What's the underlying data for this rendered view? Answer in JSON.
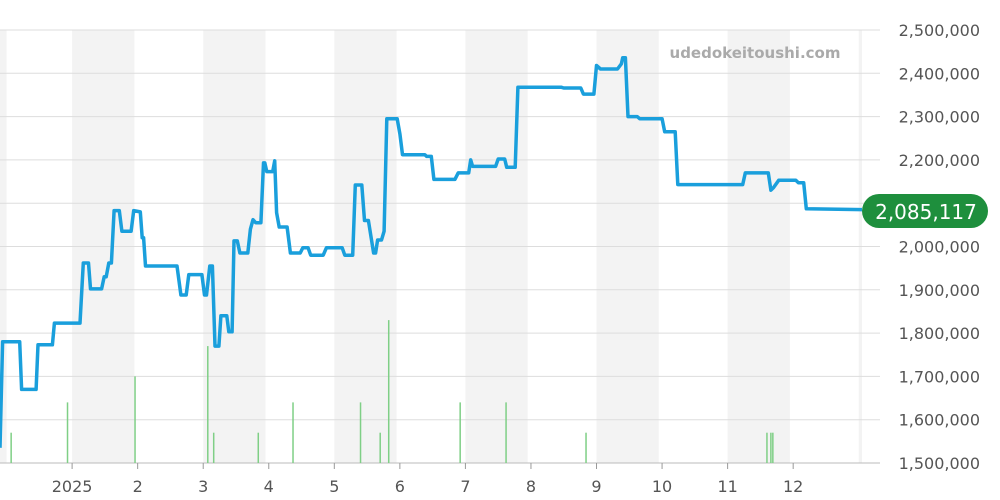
{
  "watermark": "udedokeitoushi.com",
  "current_value_label": "2,085,117",
  "colors": {
    "line": "#1a9fdc",
    "volume": "#7fcf86",
    "badge": "#1e8f3d",
    "band": "#f3f3f3",
    "grid": "#dddddd"
  },
  "chart_data": {
    "type": "line",
    "title": "",
    "xlabel": "",
    "ylabel": "",
    "ylim": [
      1500000,
      2500000
    ],
    "y_ticks": [
      {
        "value": 2500000,
        "label": "2,500,000"
      },
      {
        "value": 2400000,
        "label": "2,400,000"
      },
      {
        "value": 2300000,
        "label": "2,300,000"
      },
      {
        "value": 2200000,
        "label": "2,200,000"
      },
      {
        "value": 2100000,
        "label": ""
      },
      {
        "value": 2000000,
        "label": "2,000,000"
      },
      {
        "value": 1900000,
        "label": "1,900,000"
      },
      {
        "value": 1800000,
        "label": "1,800,000"
      },
      {
        "value": 1700000,
        "label": "1,700,000"
      },
      {
        "value": 1600000,
        "label": "1,600,000"
      },
      {
        "value": 1500000,
        "label": "1,500,000"
      }
    ],
    "x_range": [
      -1.1,
      12.05
    ],
    "x_ticks": [
      {
        "value": 0,
        "label": "2025"
      },
      {
        "value": 1,
        "label": "2"
      },
      {
        "value": 2,
        "label": "3"
      },
      {
        "value": 3,
        "label": "4"
      },
      {
        "value": 4,
        "label": "5"
      },
      {
        "value": 5,
        "label": "6"
      },
      {
        "value": 6,
        "label": "7"
      },
      {
        "value": 7,
        "label": "8"
      },
      {
        "value": 8,
        "label": "9"
      },
      {
        "value": 9,
        "label": "10"
      },
      {
        "value": 10,
        "label": "11"
      },
      {
        "value": 11,
        "label": "12"
      }
    ],
    "shaded_bands": [
      [
        -1.1,
        -1.0
      ],
      [
        0,
        0.95
      ],
      [
        2,
        2.95
      ],
      [
        4,
        4.95
      ],
      [
        6,
        6.95
      ],
      [
        8,
        8.95
      ],
      [
        10,
        10.95
      ],
      [
        12,
        12.05
      ]
    ],
    "series": [
      {
        "points": [
          [
            -1.1,
            1535000
          ],
          [
            -1.06,
            1780000
          ],
          [
            -0.8,
            1780000
          ],
          [
            -0.77,
            1670000
          ],
          [
            -0.55,
            1670000
          ],
          [
            -0.52,
            1773000
          ],
          [
            -0.3,
            1773000
          ],
          [
            -0.27,
            1823000
          ],
          [
            0.12,
            1823000
          ],
          [
            0.17,
            1962000
          ],
          [
            0.25,
            1962000
          ],
          [
            0.28,
            1902000
          ],
          [
            0.45,
            1902000
          ],
          [
            0.49,
            1930000
          ],
          [
            0.52,
            1930000
          ],
          [
            0.56,
            1962000
          ],
          [
            0.6,
            1962000
          ],
          [
            0.64,
            2083000
          ],
          [
            0.72,
            2083000
          ],
          [
            0.76,
            2035000
          ],
          [
            0.9,
            2035000
          ],
          [
            0.94,
            2083000
          ],
          [
            1.04,
            2080000
          ],
          [
            1.07,
            2020000
          ],
          [
            1.09,
            2020000
          ],
          [
            1.12,
            1955000
          ],
          [
            1.6,
            1955000
          ],
          [
            1.66,
            1888000
          ],
          [
            1.74,
            1888000
          ],
          [
            1.78,
            1935000
          ],
          [
            1.98,
            1935000
          ],
          [
            2.02,
            1888000
          ],
          [
            2.05,
            1888000
          ],
          [
            2.1,
            1955000
          ],
          [
            2.14,
            1955000
          ],
          [
            2.18,
            1770000
          ],
          [
            2.24,
            1770000
          ],
          [
            2.27,
            1840000
          ],
          [
            2.36,
            1840000
          ],
          [
            2.39,
            1803000
          ],
          [
            2.44,
            1803000
          ],
          [
            2.47,
            2013000
          ],
          [
            2.52,
            2013000
          ],
          [
            2.56,
            1985000
          ],
          [
            2.68,
            1985000
          ],
          [
            2.72,
            2040000
          ],
          [
            2.76,
            2062000
          ],
          [
            2.8,
            2055000
          ],
          [
            2.88,
            2055000
          ],
          [
            2.92,
            2193000
          ],
          [
            2.94,
            2193000
          ],
          [
            2.97,
            2173000
          ],
          [
            3.06,
            2173000
          ],
          [
            3.09,
            2198000
          ],
          [
            3.12,
            2078000
          ],
          [
            3.16,
            2045000
          ],
          [
            3.28,
            2045000
          ],
          [
            3.33,
            1985000
          ],
          [
            3.48,
            1985000
          ],
          [
            3.52,
            1997000
          ],
          [
            3.6,
            1997000
          ],
          [
            3.64,
            1980000
          ],
          [
            3.83,
            1980000
          ],
          [
            3.88,
            1997000
          ],
          [
            4.12,
            1997000
          ],
          [
            4.16,
            1980000
          ],
          [
            4.28,
            1980000
          ],
          [
            4.32,
            2142000
          ],
          [
            4.42,
            2142000
          ],
          [
            4.46,
            2060000
          ],
          [
            4.52,
            2060000
          ],
          [
            4.6,
            1985000
          ],
          [
            4.63,
            1985000
          ],
          [
            4.66,
            2015000
          ],
          [
            4.72,
            2015000
          ],
          [
            4.76,
            2035000
          ],
          [
            4.8,
            2295000
          ],
          [
            4.96,
            2295000
          ],
          [
            5.0,
            2260000
          ],
          [
            5.04,
            2212000
          ],
          [
            5.38,
            2212000
          ],
          [
            5.41,
            2208000
          ],
          [
            5.48,
            2208000
          ],
          [
            5.52,
            2155000
          ],
          [
            5.84,
            2155000
          ],
          [
            5.89,
            2170000
          ],
          [
            6.05,
            2170000
          ],
          [
            6.08,
            2200000
          ],
          [
            6.11,
            2185000
          ],
          [
            6.46,
            2185000
          ],
          [
            6.5,
            2202000
          ],
          [
            6.6,
            2202000
          ],
          [
            6.63,
            2183000
          ],
          [
            6.76,
            2183000
          ],
          [
            6.8,
            2368000
          ],
          [
            7.46,
            2368000
          ],
          [
            7.5,
            2366000
          ],
          [
            7.76,
            2366000
          ],
          [
            7.8,
            2352000
          ],
          [
            7.96,
            2352000
          ],
          [
            8.0,
            2418000
          ],
          [
            8.06,
            2410000
          ],
          [
            8.32,
            2410000
          ],
          [
            8.38,
            2422000
          ],
          [
            8.4,
            2436000
          ],
          [
            8.44,
            2436000
          ],
          [
            8.48,
            2300000
          ],
          [
            8.62,
            2300000
          ],
          [
            8.66,
            2295000
          ],
          [
            9.0,
            2295000
          ],
          [
            9.04,
            2265000
          ],
          [
            9.2,
            2265000
          ],
          [
            9.24,
            2143000
          ],
          [
            10.23,
            2143000
          ],
          [
            10.27,
            2170000
          ],
          [
            10.62,
            2170000
          ],
          [
            10.66,
            2130000
          ],
          [
            10.7,
            2136000
          ],
          [
            10.78,
            2153000
          ],
          [
            11.04,
            2153000
          ],
          [
            11.08,
            2147000
          ],
          [
            11.16,
            2147000
          ],
          [
            11.2,
            2087000
          ],
          [
            12.05,
            2085117
          ]
        ]
      }
    ],
    "volume_bars": [
      {
        "x": -0.93,
        "h": 0.07
      },
      {
        "x": -0.07,
        "h": 0.14
      },
      {
        "x": 0.96,
        "h": 0.2
      },
      {
        "x": 2.07,
        "h": 0.27
      },
      {
        "x": 2.16,
        "h": 0.07
      },
      {
        "x": 2.84,
        "h": 0.07
      },
      {
        "x": 3.37,
        "h": 0.14
      },
      {
        "x": 4.4,
        "h": 0.14
      },
      {
        "x": 4.7,
        "h": 0.07
      },
      {
        "x": 4.83,
        "h": 0.33
      },
      {
        "x": 5.92,
        "h": 0.14
      },
      {
        "x": 6.62,
        "h": 0.14
      },
      {
        "x": 7.84,
        "h": 0.07
      },
      {
        "x": 10.6,
        "h": 0.07
      },
      {
        "x": 10.66,
        "h": 0.07
      },
      {
        "x": 10.69,
        "h": 0.07
      }
    ]
  }
}
